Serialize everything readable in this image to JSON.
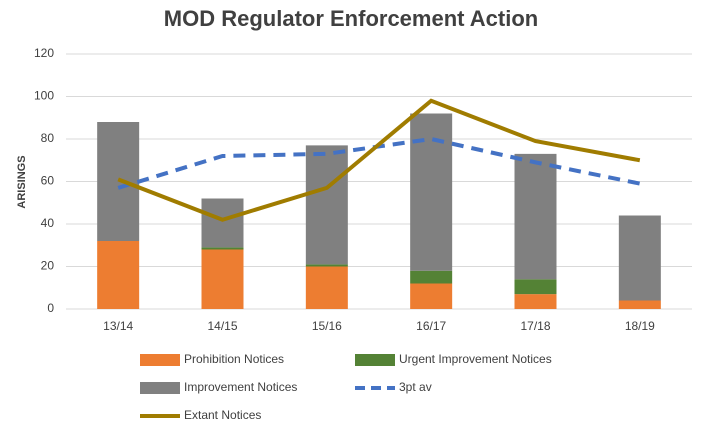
{
  "chart_data": {
    "type": "bar",
    "title": "MOD Regulator Enforcement Action",
    "y_label": "ARISINGS",
    "categories": [
      "13/14",
      "14/15",
      "15/16",
      "16/17",
      "17/18",
      "18/19"
    ],
    "series": [
      {
        "name": "Prohibition Notices",
        "color": "#ed7d31",
        "type": "bar",
        "values": [
          32,
          28,
          20,
          12,
          7,
          4
        ]
      },
      {
        "name": "Urgent Improvement Notices",
        "color": "#548235",
        "type": "bar",
        "values": [
          0,
          1,
          1,
          6,
          7,
          0
        ]
      },
      {
        "name": "Improvement Notices",
        "color": "#808080",
        "type": "bar",
        "values": [
          56,
          23,
          56,
          74,
          59,
          40
        ]
      },
      {
        "name": "3pt av",
        "color": "#4472c4",
        "type": "line",
        "dashed": true,
        "values": [
          57,
          72,
          73,
          80,
          69,
          59
        ]
      },
      {
        "name": "Extant Notices",
        "color": "#a07c00",
        "type": "line",
        "dashed": false,
        "values": [
          61,
          42,
          57,
          98,
          79,
          70
        ]
      }
    ],
    "ylim": [
      0,
      120
    ],
    "yticks": [
      0,
      20,
      40,
      60,
      80,
      100,
      120
    ],
    "grid": true
  }
}
